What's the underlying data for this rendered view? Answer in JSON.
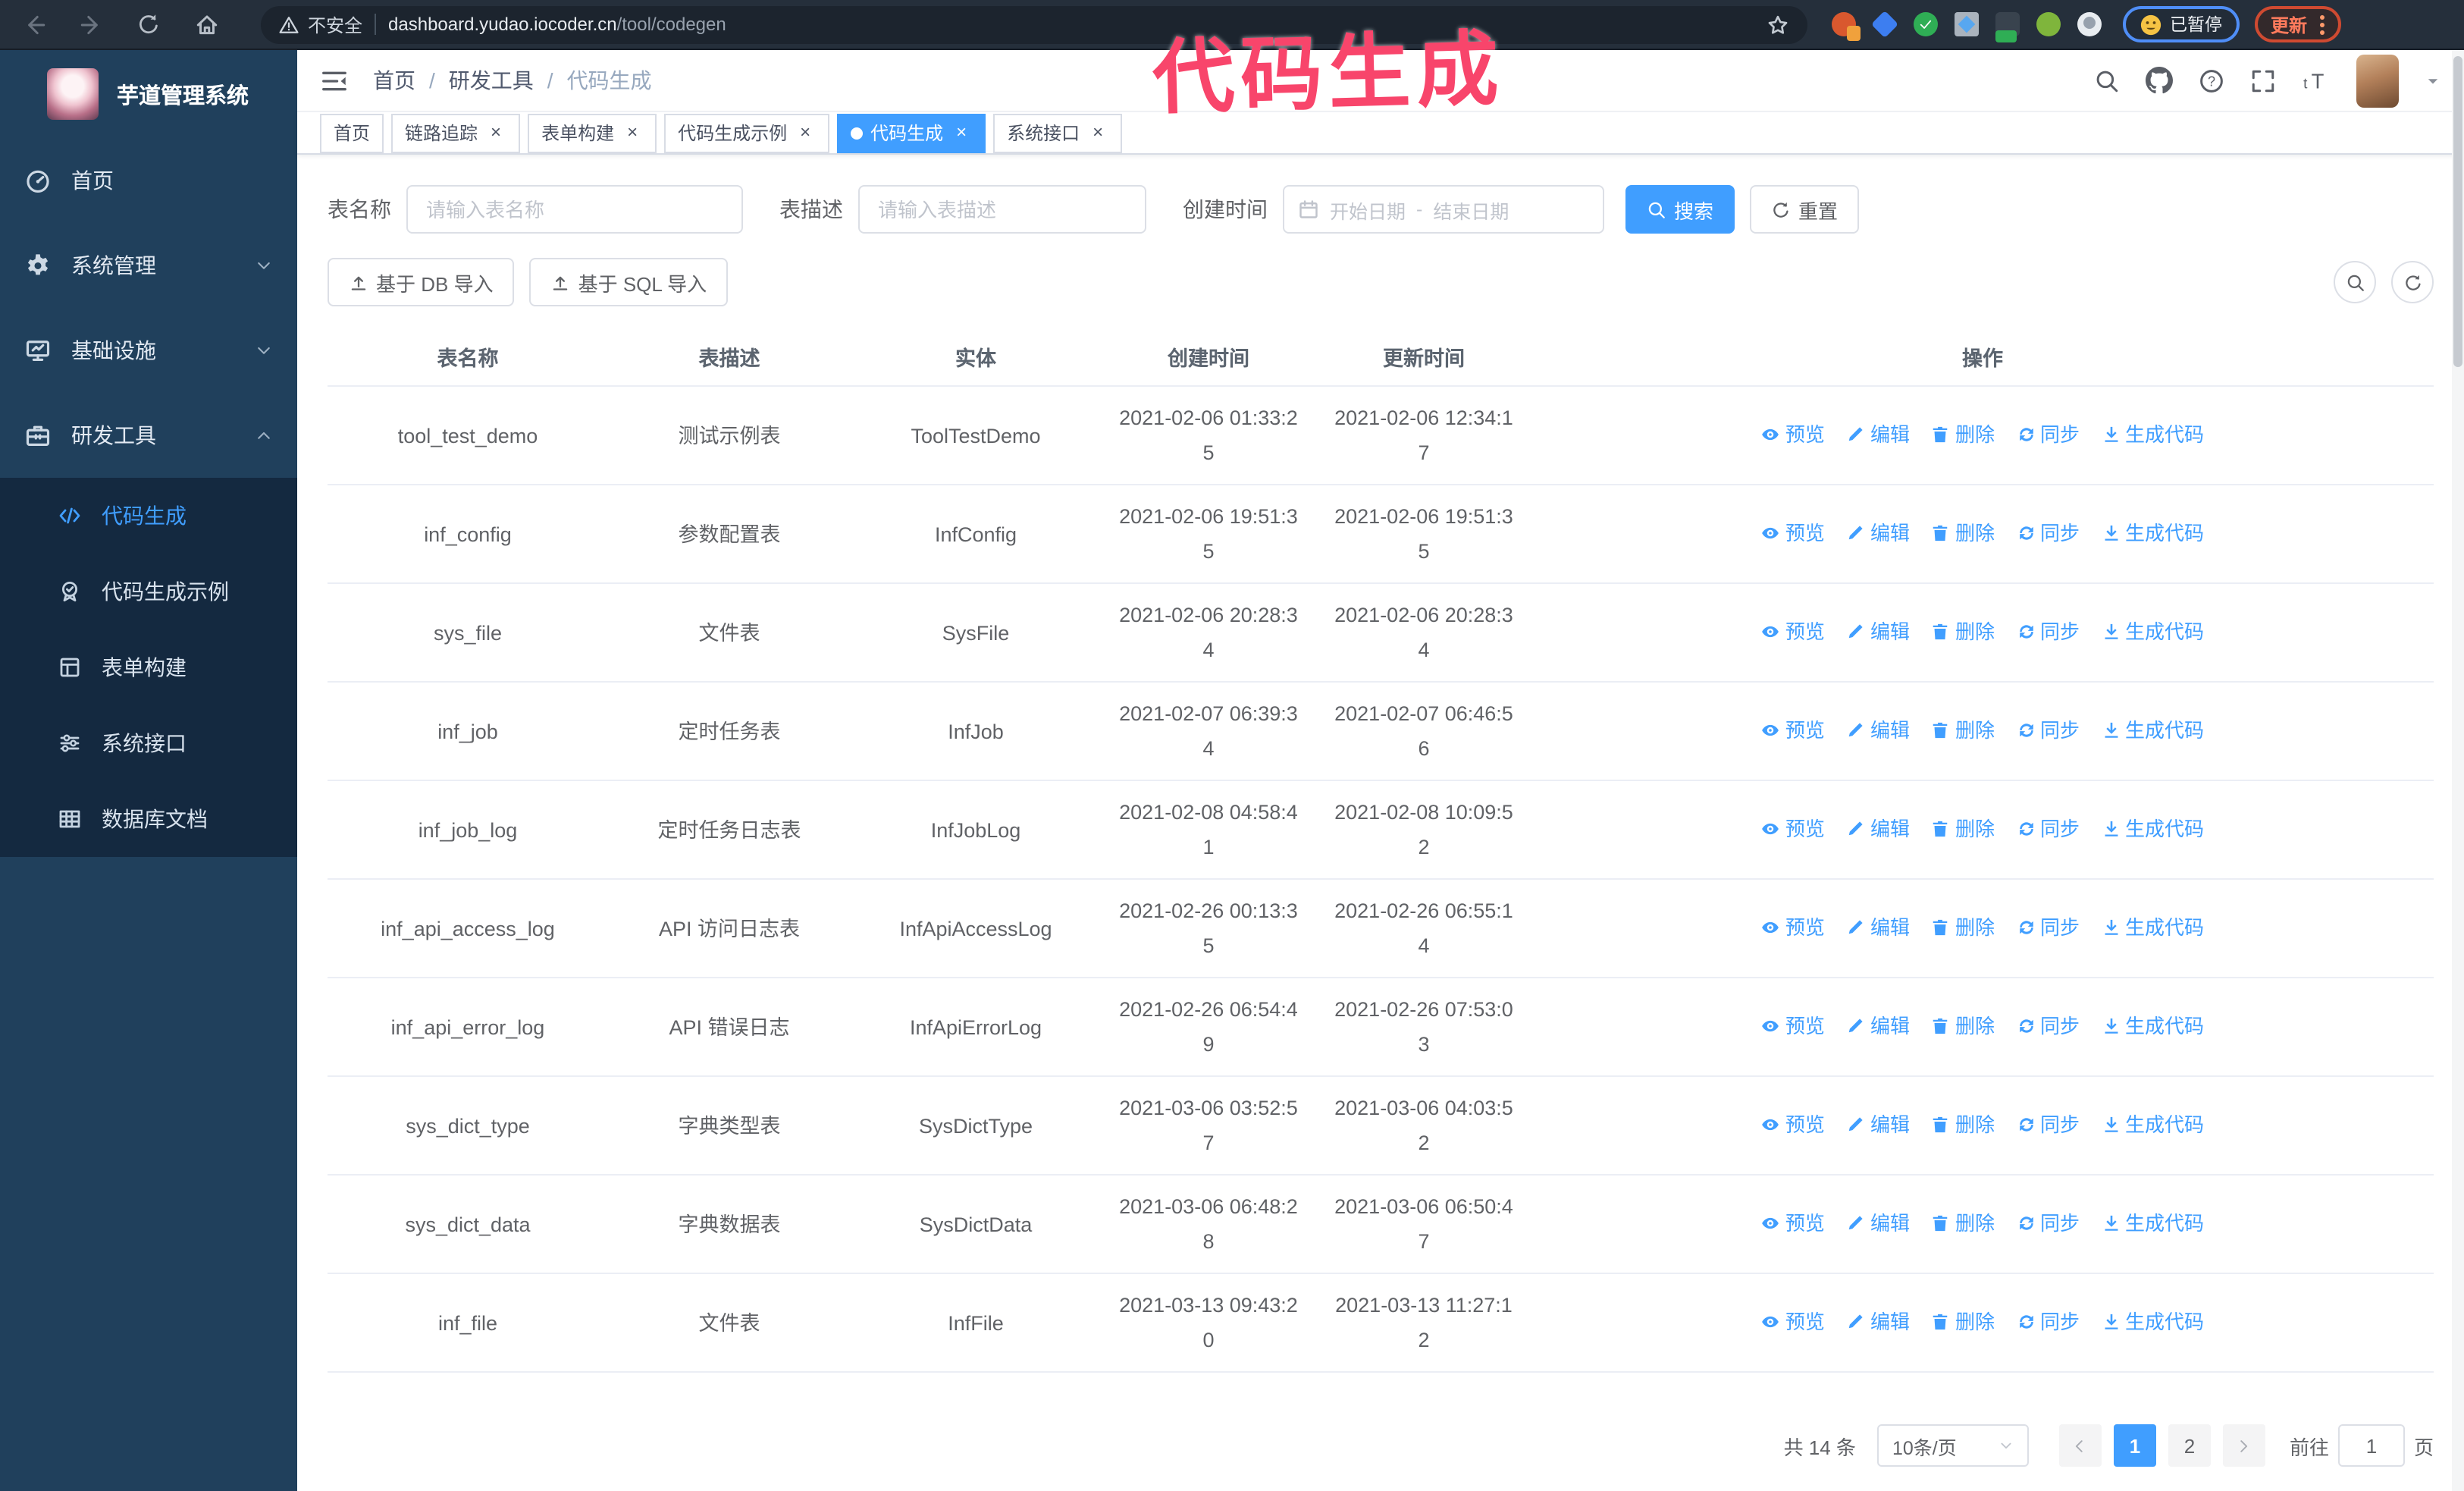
{
  "theme": {
    "primary": "#409eff",
    "sidebar_bg": "#20405c",
    "submenu_bg": "#142940",
    "annotation_color": "#f8456b",
    "active_tab_bg": "#409eff"
  },
  "browser": {
    "security_label": "不安全",
    "url_host": "dashboard.yudao.iocoder.cn",
    "url_path": "/tool/codegen",
    "paused_label": "已暂停",
    "update_label": "更新"
  },
  "annotation": {
    "text": "代码生成"
  },
  "sidebar": {
    "title": "芋道管理系统",
    "items": [
      {
        "label": "首页"
      },
      {
        "label": "系统管理"
      },
      {
        "label": "基础设施"
      },
      {
        "label": "研发工具"
      }
    ],
    "sub_items": [
      {
        "label": "代码生成",
        "active": true
      },
      {
        "label": "代码生成示例"
      },
      {
        "label": "表单构建"
      },
      {
        "label": "系统接口"
      },
      {
        "label": "数据库文档"
      }
    ]
  },
  "header": {
    "breadcrumb": [
      "首页",
      "研发工具",
      "代码生成"
    ]
  },
  "tabs": [
    {
      "label": "首页",
      "closable": false,
      "active": false
    },
    {
      "label": "链路追踪",
      "closable": true,
      "active": false
    },
    {
      "label": "表单构建",
      "closable": true,
      "active": false
    },
    {
      "label": "代码生成示例",
      "closable": true,
      "active": false
    },
    {
      "label": "代码生成",
      "closable": true,
      "active": true
    },
    {
      "label": "系统接口",
      "closable": true,
      "active": false
    }
  ],
  "filters": {
    "name_label": "表名称",
    "name_placeholder": "请输入表名称",
    "desc_label": "表描述",
    "desc_placeholder": "请输入表描述",
    "time_label": "创建时间",
    "start_placeholder": "开始日期",
    "range_separator": "-",
    "end_placeholder": "结束日期",
    "search_label": "搜索",
    "reset_label": "重置"
  },
  "actions_bar": {
    "import_db_label": "基于 DB 导入",
    "import_sql_label": "基于 SQL 导入"
  },
  "table": {
    "columns": [
      "表名称",
      "表描述",
      "实体",
      "创建时间",
      "更新时间",
      "操作"
    ],
    "actions": [
      {
        "label": "预览",
        "icon": "eye"
      },
      {
        "label": "编辑",
        "icon": "edit"
      },
      {
        "label": "删除",
        "icon": "delete"
      },
      {
        "label": "同步",
        "icon": "sync"
      },
      {
        "label": "生成代码",
        "icon": "download"
      }
    ],
    "rows": [
      {
        "name": "tool_test_demo",
        "desc": "测试示例表",
        "entity": "ToolTestDemo",
        "created": "2021-02-06 01:33:25",
        "updated": "2021-02-06 12:34:17"
      },
      {
        "name": "inf_config",
        "desc": "参数配置表",
        "entity": "InfConfig",
        "created": "2021-02-06 19:51:35",
        "updated": "2021-02-06 19:51:35"
      },
      {
        "name": "sys_file",
        "desc": "文件表",
        "entity": "SysFile",
        "created": "2021-02-06 20:28:34",
        "updated": "2021-02-06 20:28:34"
      },
      {
        "name": "inf_job",
        "desc": "定时任务表",
        "entity": "InfJob",
        "created": "2021-02-07 06:39:34",
        "updated": "2021-02-07 06:46:56"
      },
      {
        "name": "inf_job_log",
        "desc": "定时任务日志表",
        "entity": "InfJobLog",
        "created": "2021-02-08 04:58:41",
        "updated": "2021-02-08 10:09:52"
      },
      {
        "name": "inf_api_access_log",
        "desc": "API 访问日志表",
        "entity": "InfApiAccessLog",
        "created": "2021-02-26 00:13:35",
        "updated": "2021-02-26 06:55:14"
      },
      {
        "name": "inf_api_error_log",
        "desc": "API 错误日志",
        "entity": "InfApiErrorLog",
        "created": "2021-02-26 06:54:49",
        "updated": "2021-02-26 07:53:03"
      },
      {
        "name": "sys_dict_type",
        "desc": "字典类型表",
        "entity": "SysDictType",
        "created": "2021-03-06 03:52:57",
        "updated": "2021-03-06 04:03:52"
      },
      {
        "name": "sys_dict_data",
        "desc": "字典数据表",
        "entity": "SysDictData",
        "created": "2021-03-06 06:48:28",
        "updated": "2021-03-06 06:50:47"
      },
      {
        "name": "inf_file",
        "desc": "文件表",
        "entity": "InfFile",
        "created": "2021-03-13 09:43:20",
        "updated": "2021-03-13 11:27:12"
      }
    ]
  },
  "pagination": {
    "total": "共 14 条",
    "page_size": "10条/页",
    "pages": [
      "1",
      "2"
    ],
    "active_page": "1",
    "goto_label": "前往",
    "goto_value": "1",
    "unit_label": "页"
  }
}
